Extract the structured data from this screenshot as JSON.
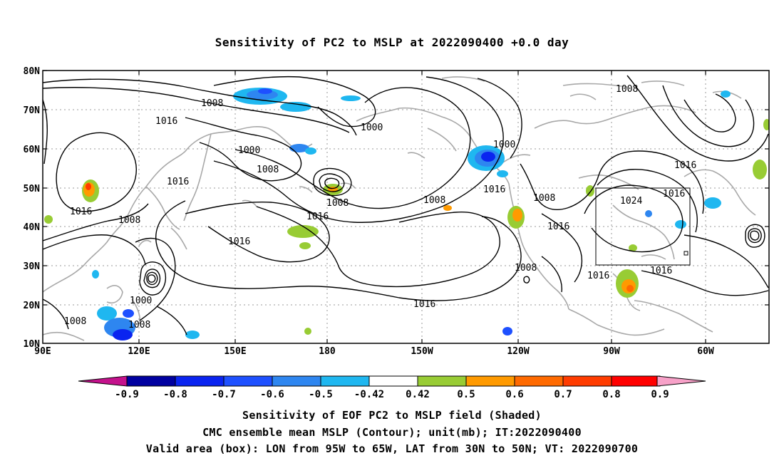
{
  "title": "Sensitivity of PC2 to MSLP at 2022090400 +0.0 day",
  "map": {
    "lat_ticks": [
      "80N",
      "70N",
      "60N",
      "50N",
      "40N",
      "30N",
      "20N",
      "10N"
    ],
    "lon_ticks": [
      "90E",
      "120E",
      "150E",
      "180",
      "150W",
      "120W",
      "90W",
      "60W"
    ],
    "contour_labels": [
      "1008",
      "1016",
      "1000",
      "1000",
      "1008",
      "1000",
      "1008",
      "1016",
      "1016",
      "1008",
      "1016",
      "1008",
      "1016",
      "1008",
      "1016",
      "1024",
      "1016",
      "1016",
      "1008",
      "1016",
      "1016",
      "1000",
      "1008",
      "1008",
      "1016",
      "1008"
    ],
    "valid_area_box": {
      "lon_from": "95W",
      "lon_to": "65W",
      "lat_from": "30N",
      "lat_to": "50N"
    }
  },
  "colorbar": {
    "labels": [
      "-0.9",
      "-0.8",
      "-0.7",
      "-0.6",
      "-0.5",
      "-0.42",
      "0.42",
      "0.5",
      "0.6",
      "0.7",
      "0.8",
      "0.9"
    ],
    "colors": [
      "#0000a0",
      "#0a24f0",
      "#1e50ff",
      "#2e86f0",
      "#1fb7f0",
      "#ffffff",
      "#98cc34",
      "#ff9a00",
      "#ff6a00",
      "#ff3c00",
      "#ff0000"
    ],
    "low_arrow_color": "#c4128c",
    "high_arrow_color": "#f7a1c8"
  },
  "captions": [
    "Sensitivity of EOF PC2 to MSLP field (Shaded)",
    "CMC ensemble mean MSLP (Contour); unit(mb); IT:2022090400",
    "Valid area (box): LON from 95W to 65W, LAT from 30N to 50N; VT: 2022090700"
  ]
}
